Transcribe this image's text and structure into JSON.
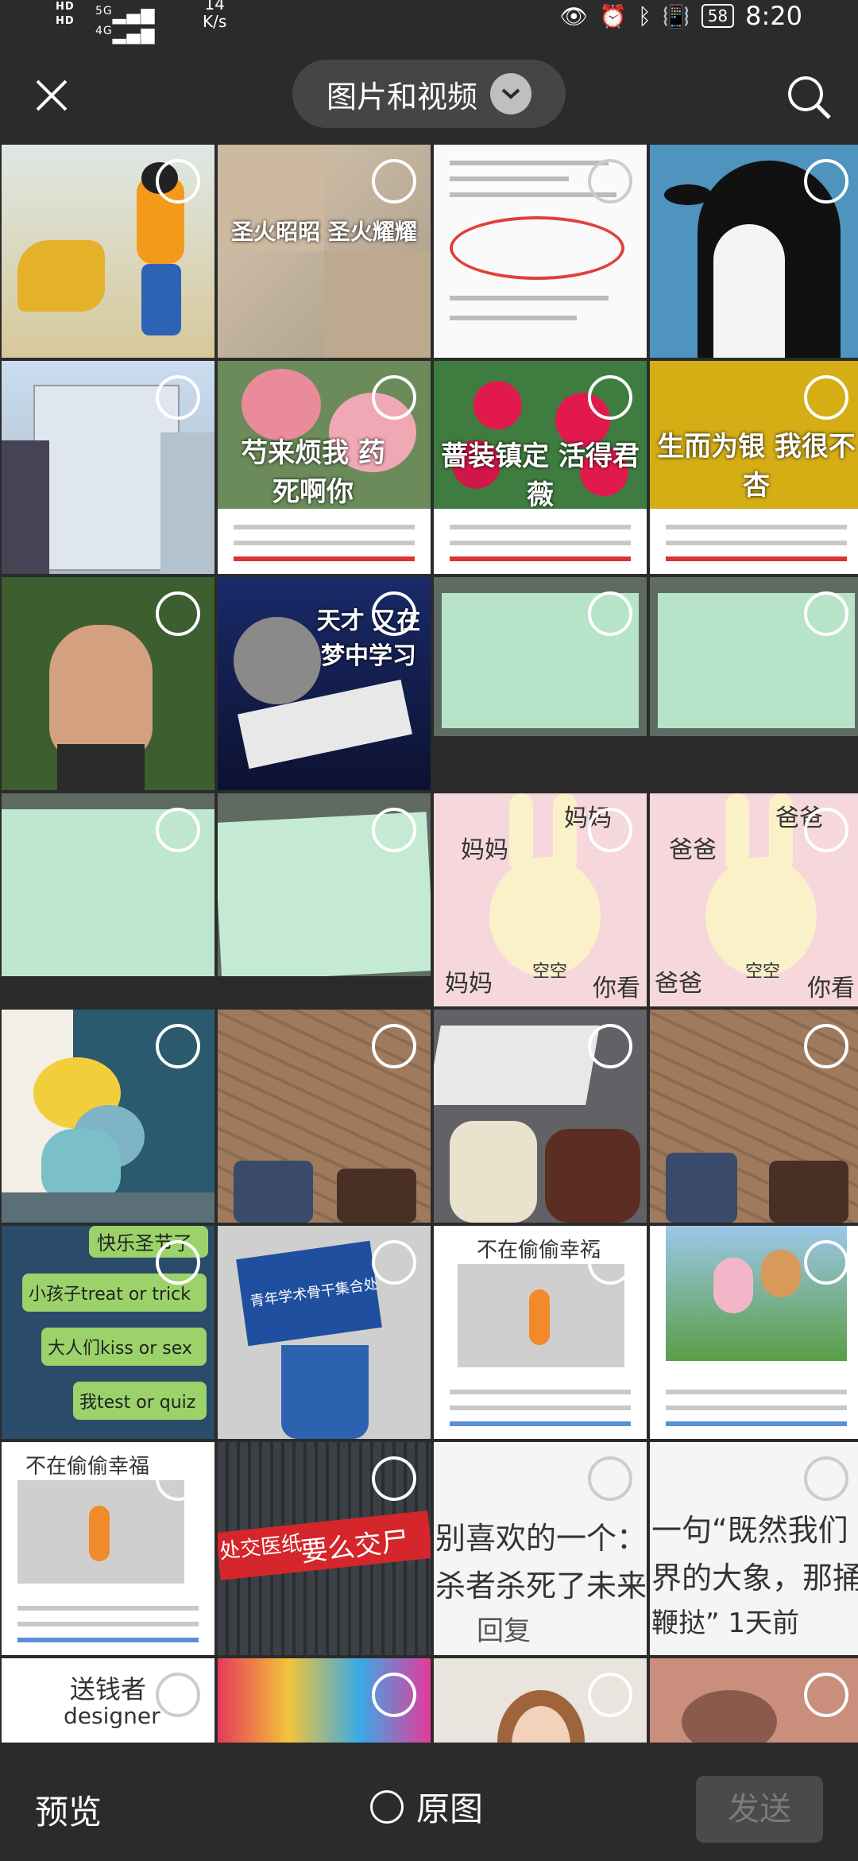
{
  "status_bar": {
    "hd1": "HD",
    "hd2": "HD",
    "signal1": "5G",
    "signal2": "4G",
    "speed_value": "14",
    "speed_unit": "K/s",
    "battery": "58",
    "time": "8:20"
  },
  "header": {
    "album_title": "图片和视频"
  },
  "grid": {
    "captions": {
      "cat_meme": "圣火昭昭 圣火耀耀",
      "roses_pink": "芍来烦我 药死啊你",
      "roses_red": "蔷装镇定 活得君薇",
      "yellow_leaves": "生而为银 我很不杏",
      "cat_book": "天才 又在梦中学习",
      "bunny_left_top": "妈妈",
      "bunny_left_mid": "妈妈",
      "bunny_left_bottom": "妈妈",
      "bunny_left_center": "空空",
      "bunny_left_right": "你看",
      "bunny_right_top": "爸爸",
      "bunny_right_mid": "爸爸",
      "bunny_right_bottom": "爸爸",
      "bunny_right_center": "空空",
      "bunny_right_right": "你看",
      "chat_1": "快乐圣节了",
      "chat_2": "小孩子treat or trick",
      "chat_3": "大人们kiss or sex",
      "chat_4": "我test or quiz",
      "sign": "青年学术骨干集合处",
      "carrot_1": "不在偷偷幸福",
      "carrot_2": "不在偷偷幸福",
      "banner": "要么交尸",
      "banner_left": "处交医纸",
      "comment_1": "别喜欢的一个：",
      "comment_2": "杀者杀死了未来",
      "comment_3": "回复",
      "comment_4": "一句“既然我们",
      "comment_5": "界的大象，那捅",
      "comment_6": "鞭挞” 1天前",
      "money_1": "送钱者",
      "money_2": "designer"
    }
  },
  "bottom_bar": {
    "preview_label": "预览",
    "original_label": "原图",
    "send_label": "发送"
  }
}
